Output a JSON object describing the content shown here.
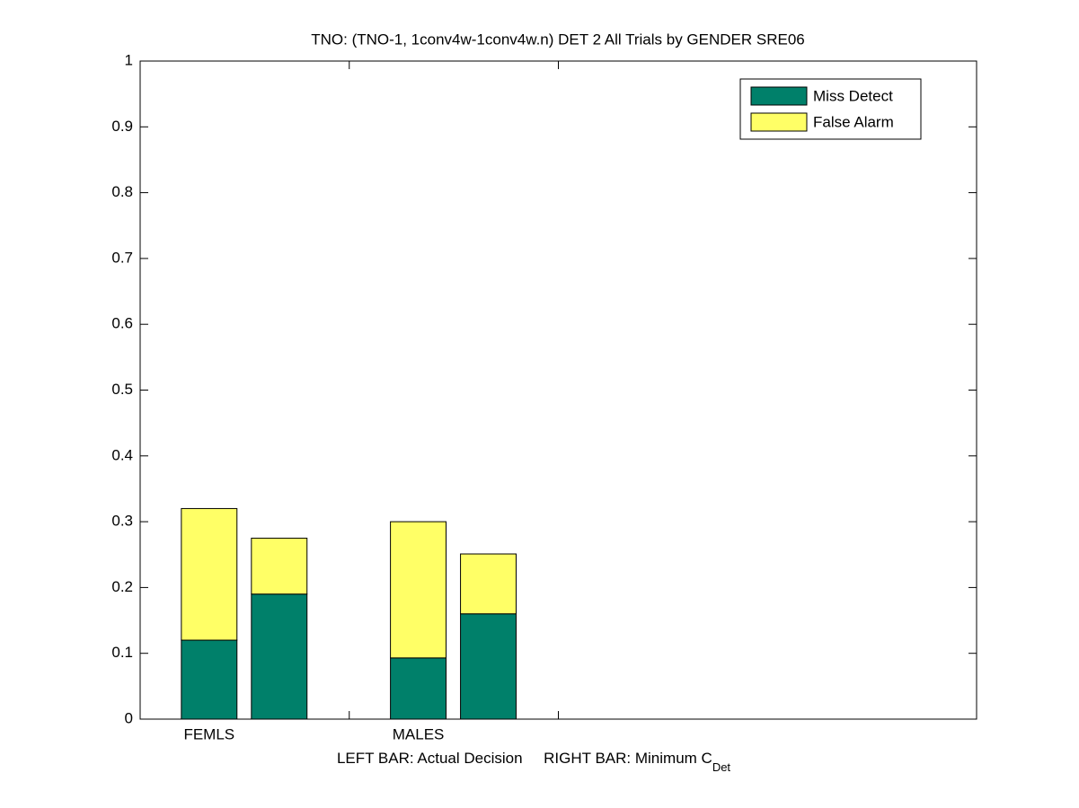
{
  "chart_data": {
    "type": "bar",
    "stacked": true,
    "title": "TNO: (TNO-1, 1conv4w-1conv4w.n) DET 2 All Trials by GENDER SRE06",
    "xlabel": {
      "text": "LEFT BAR: Actual Decision     RIGHT BAR: Minimum C",
      "subscript": "Det"
    },
    "categories": [
      "FEMLS",
      "MALES",
      null,
      null
    ],
    "series": [
      {
        "name": "Miss Detect",
        "color": "#00806a",
        "values": [
          [
            0.12,
            0.19
          ],
          [
            0.093,
            0.16
          ],
          null,
          null
        ]
      },
      {
        "name": "False Alarm",
        "color": "#ffff66",
        "values": [
          [
            0.2,
            0.085
          ],
          [
            0.207,
            0.091
          ],
          null,
          null
        ]
      }
    ],
    "ylim": [
      0,
      1
    ],
    "yticks": [
      0,
      0.1,
      0.2,
      0.3,
      0.4,
      0.5,
      0.6,
      0.7,
      0.8,
      0.9,
      1
    ],
    "grid": false,
    "legend": "top-right"
  }
}
